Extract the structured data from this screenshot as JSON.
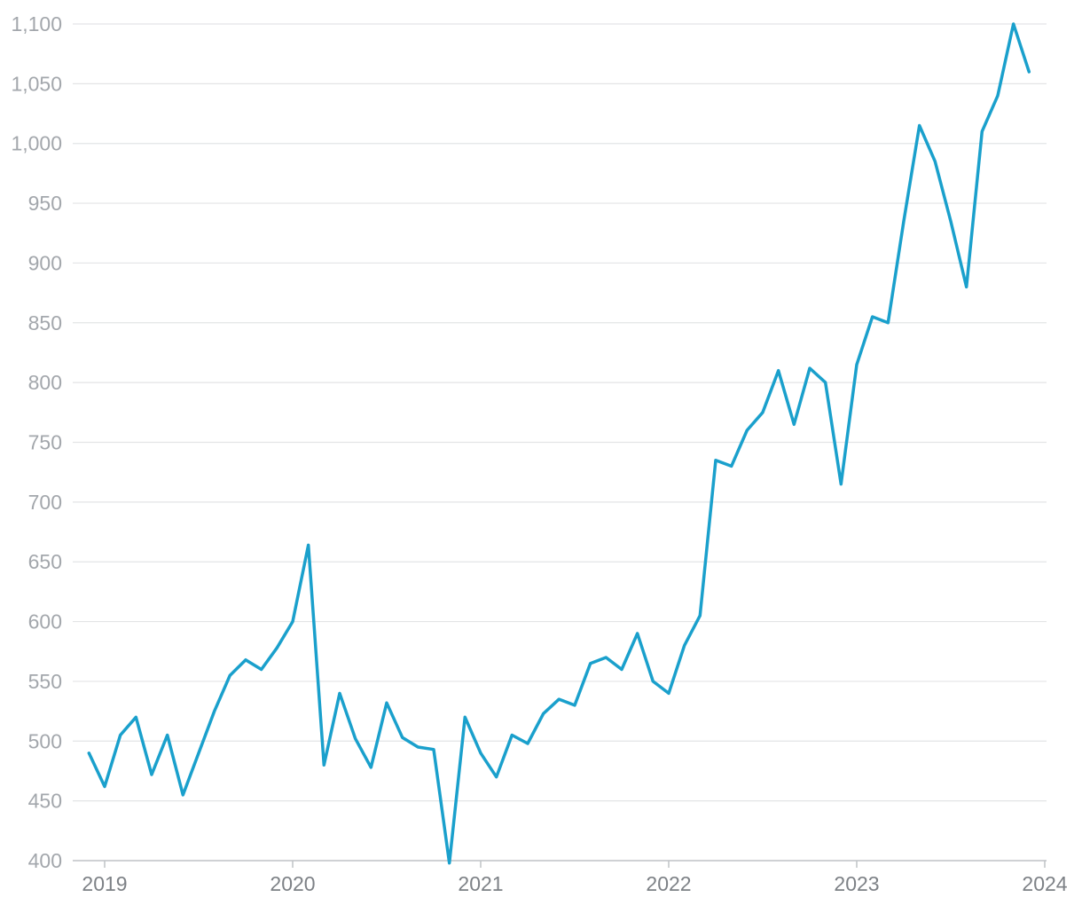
{
  "chart_data": {
    "type": "line",
    "title": "",
    "xlabel": "",
    "ylabel": "",
    "ylim": [
      400,
      1100
    ],
    "y_ticks": [
      "400",
      "450",
      "500",
      "550",
      "600",
      "650",
      "700",
      "750",
      "800",
      "850",
      "900",
      "950",
      "1,000",
      "1,050",
      "1,100"
    ],
    "x_ticks": [
      "2019",
      "2020",
      "2021",
      "2022",
      "2023",
      "2024"
    ],
    "grid": "horizontal",
    "line_color": "#1aa0cc",
    "series": [
      {
        "x": [
          "2018-12",
          "2019-01",
          "2019-02",
          "2019-03",
          "2019-04",
          "2019-05",
          "2019-06",
          "2019-07",
          "2019-08",
          "2019-09",
          "2019-10",
          "2019-11",
          "2019-12",
          "2020-01",
          "2020-02",
          "2020-03",
          "2020-04",
          "2020-05",
          "2020-06",
          "2020-07",
          "2020-08",
          "2020-09",
          "2020-10",
          "2020-11",
          "2020-12",
          "2021-01",
          "2021-02",
          "2021-03",
          "2021-04",
          "2021-05",
          "2021-06",
          "2021-07",
          "2021-08",
          "2021-09",
          "2021-10",
          "2021-11",
          "2021-12",
          "2022-01",
          "2022-02",
          "2022-03",
          "2022-04",
          "2022-05",
          "2022-06",
          "2022-07",
          "2022-08",
          "2022-09",
          "2022-10",
          "2022-11",
          "2022-12",
          "2023-01",
          "2023-02",
          "2023-03",
          "2023-04",
          "2023-05",
          "2023-06",
          "2023-07",
          "2023-08",
          "2023-09",
          "2023-10",
          "2023-11",
          "2023-12"
        ],
        "values": [
          490,
          462,
          505,
          520,
          472,
          505,
          455,
          490,
          525,
          555,
          568,
          560,
          578,
          600,
          664,
          480,
          540,
          502,
          478,
          532,
          503,
          495,
          493,
          398,
          520,
          490,
          470,
          505,
          498,
          523,
          535,
          530,
          565,
          570,
          560,
          590,
          550,
          540,
          580,
          605,
          735,
          730,
          760,
          775,
          810,
          765,
          812,
          800,
          715,
          815,
          855,
          850,
          935,
          1015,
          985,
          935,
          880,
          1010,
          1040,
          1100,
          1060
        ]
      }
    ]
  }
}
